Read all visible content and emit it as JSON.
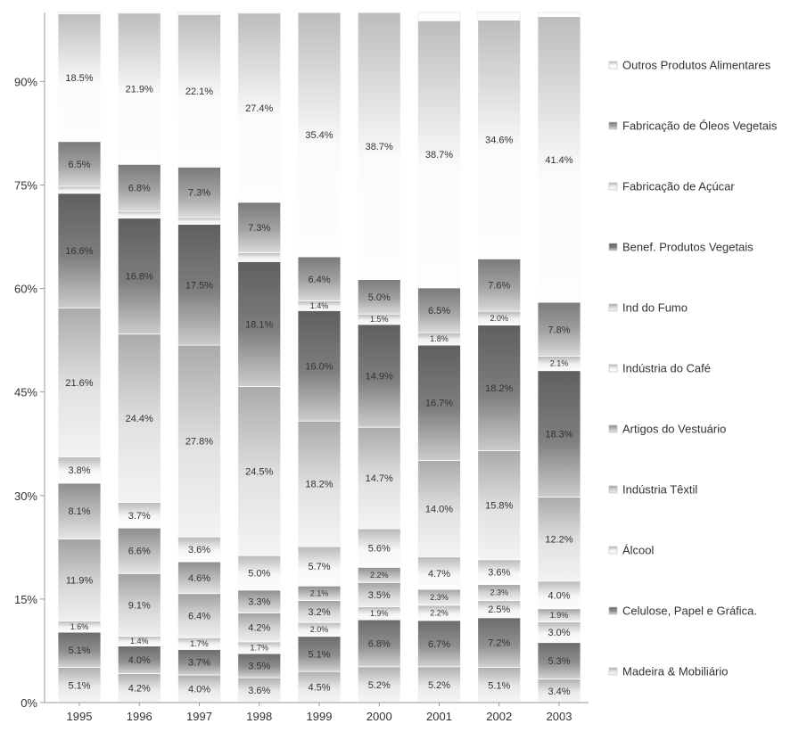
{
  "chart_data": {
    "type": "bar",
    "stacked": true,
    "title": "",
    "xlabel": "",
    "ylabel": "",
    "ylim": [
      0,
      100
    ],
    "y_ticks": [
      "0%",
      "15%",
      "30%",
      "45%",
      "60%",
      "75%",
      "90%"
    ],
    "grid": false,
    "legend_position": "right",
    "categories": [
      "1995",
      "1996",
      "1997",
      "1998",
      "1999",
      "2000",
      "2001",
      "2002",
      "2003"
    ],
    "series": [
      {
        "name": "Madeira & Mobiliário",
        "values": [
          5.1,
          4.2,
          4.0,
          3.6,
          4.5,
          5.2,
          5.2,
          5.1,
          3.4
        ],
        "labels": [
          "5.1%",
          "4.2%",
          "4.0%",
          "3.6%",
          "4.5%",
          "5.2%",
          "5.2%",
          "5.1%",
          "3.4%"
        ],
        "color": "#e9e9e9"
      },
      {
        "name": "Celulose, Papel e Gráfica.",
        "values": [
          5.1,
          4.0,
          3.7,
          3.5,
          5.1,
          6.8,
          6.7,
          7.2,
          5.3
        ],
        "labels": [
          "5.1%",
          "4.0%",
          "3.7%",
          "3.5%",
          "5.1%",
          "6.8%",
          "6.7%",
          "7.2%",
          "5.3%"
        ],
        "color": "#8f8f8f"
      },
      {
        "name": "Álcool",
        "values": [
          1.6,
          1.4,
          1.7,
          1.7,
          2.0,
          1.9,
          2.2,
          2.5,
          3.0
        ],
        "labels": [
          "1.6%",
          "1.4%",
          "1.7%",
          "1.7%",
          "2.0%",
          "1.9%",
          "2.2%",
          "2.5%",
          "3.0%"
        ],
        "color": "#f4f4f4"
      },
      {
        "name": "Indústria Têxtil",
        "values": [
          11.9,
          9.1,
          6.4,
          4.2,
          3.2,
          3.5,
          2.3,
          2.3,
          1.9
        ],
        "labels": [
          "11.9%",
          "9.1%",
          "6.4%",
          "4.2%",
          "3.2%",
          "3.5%",
          "2.3%",
          "2.3%",
          "1.9%"
        ],
        "color": "#d6d6d6"
      },
      {
        "name": "Artigos do Vestuário",
        "values": [
          8.1,
          6.6,
          4.6,
          3.3,
          2.1,
          2.2,
          0,
          0,
          0
        ],
        "labels": [
          "8.1%",
          "6.6%",
          "4.6%",
          "3.3%",
          "2.1%",
          "2.2%",
          "",
          "",
          ""
        ],
        "color": "#bdbdbd"
      },
      {
        "name": "Indústria do Café",
        "values": [
          3.8,
          3.7,
          3.6,
          5.0,
          5.7,
          5.6,
          4.7,
          3.6,
          4.0
        ],
        "labels": [
          "3.8%",
          "3.7%",
          "3.6%",
          "5.0%",
          "5.7%",
          "5.6%",
          "4.7%",
          "3.6%",
          "4.0%"
        ],
        "color": "#f7f7f7"
      },
      {
        "name": "Ind do Fumo",
        "values": [
          21.6,
          24.4,
          27.8,
          24.5,
          18.2,
          14.7,
          14.0,
          15.8,
          12.2
        ],
        "labels": [
          "21.6%",
          "24.4%",
          "27.8%",
          "24.5%",
          "18.2%",
          "14.7%",
          "14.0%",
          "15.8%",
          "12.2%"
        ],
        "color": "#e2e2e2"
      },
      {
        "name": "Benef. Produtos Vegetais",
        "values": [
          16.6,
          16.8,
          17.5,
          18.1,
          16.0,
          14.9,
          16.7,
          18.2,
          18.3
        ],
        "labels": [
          "16.6%",
          "16.8%",
          "17.5%",
          "18.1%",
          "16.0%",
          "14.9%",
          "16.7%",
          "18.2%",
          "18.3%"
        ],
        "color": "#7e7e7e"
      },
      {
        "name": "Fabricação de Açúcar",
        "values": [
          1.0,
          1.0,
          1.0,
          1.3,
          1.4,
          1.5,
          1.8,
          2.0,
          2.1
        ],
        "labels": [
          "",
          "",
          "",
          "",
          "1.4%",
          "1.5%",
          "1.8%",
          "2.0%",
          "2.1%"
        ],
        "color": "#f1f1f1"
      },
      {
        "name": "Fabricação de Óleos Vegetais",
        "values": [
          6.5,
          6.8,
          7.3,
          7.3,
          6.4,
          5.0,
          6.5,
          7.6,
          7.8
        ],
        "labels": [
          "6.5%",
          "6.8%",
          "7.3%",
          "7.3%",
          "6.4%",
          "5.0%",
          "6.5%",
          "7.6%",
          "7.8%"
        ],
        "color": "#a3a3a3"
      },
      {
        "name": "Outros Produtos Alimentares",
        "values": [
          18.5,
          21.9,
          22.1,
          27.4,
          35.4,
          38.7,
          38.7,
          34.6,
          41.4
        ],
        "labels": [
          "18.5%",
          "21.9%",
          "22.1%",
          "27.4%",
          "35.4%",
          "38.7%",
          "38.7%",
          "34.6%",
          "41.4%"
        ],
        "color": "#fbfbfb"
      }
    ],
    "legend_order": [
      10,
      9,
      8,
      7,
      6,
      5,
      4,
      3,
      2,
      1,
      0
    ]
  }
}
